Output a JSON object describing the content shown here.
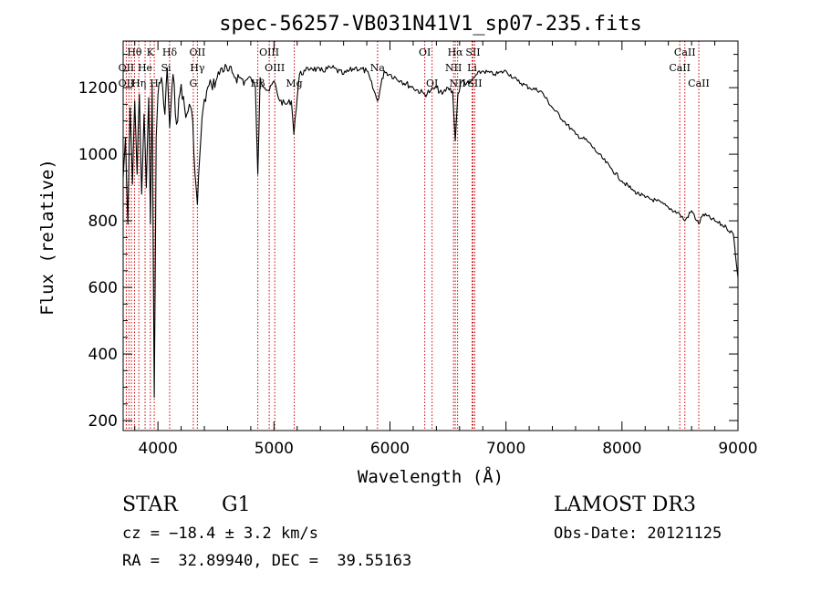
{
  "chart_data": {
    "type": "line",
    "title": "spec-56257-VB031N41V1_sp07-235.fits",
    "xlabel": "Wavelength (Å)",
    "ylabel": "Flux (relative)",
    "xlim": [
      3700,
      9000
    ],
    "ylim": [
      170,
      1340
    ],
    "x_ticks": [
      4000,
      5000,
      6000,
      7000,
      8000,
      9000
    ],
    "x_tick_labels": [
      "4000",
      "5000",
      "6000",
      "7000",
      "8000",
      "9000"
    ],
    "y_ticks": [
      200,
      400,
      600,
      800,
      1000,
      1200
    ],
    "y_tick_labels": [
      "200",
      "400",
      "600",
      "800",
      "1000",
      "1200"
    ],
    "grid": false,
    "series": [
      {
        "name": "flux",
        "color": "#000000",
        "x": [
          3700,
          3720,
          3740,
          3760,
          3780,
          3800,
          3820,
          3840,
          3860,
          3880,
          3900,
          3920,
          3935,
          3950,
          3968,
          3985,
          4000,
          4030,
          4060,
          4080,
          4101,
          4130,
          4160,
          4200,
          4240,
          4270,
          4300,
          4320,
          4340,
          4361,
          4380,
          4420,
          4460,
          4500,
          4550,
          4600,
          4650,
          4700,
          4750,
          4800,
          4840,
          4861,
          4880,
          4920,
          4960,
          5000,
          5050,
          5100,
          5150,
          5172,
          5183,
          5220,
          5270,
          5320,
          5400,
          5500,
          5600,
          5700,
          5800,
          5893,
          5950,
          6000,
          6100,
          6200,
          6300,
          6350,
          6400,
          6450,
          6500,
          6540,
          6563,
          6585,
          6620,
          6680,
          6750,
          6800,
          6900,
          7000,
          7100,
          7200,
          7300,
          7400,
          7500,
          7600,
          7700,
          7800,
          7900,
          8000,
          8100,
          8200,
          8300,
          8400,
          8498,
          8542,
          8600,
          8662,
          8700,
          8800,
          8900,
          8960,
          9000
        ],
        "y": [
          930,
          1050,
          790,
          1140,
          910,
          1160,
          940,
          1180,
          880,
          1120,
          900,
          1170,
          790,
          1210,
          270,
          1050,
          1180,
          1230,
          1120,
          1260,
          1080,
          1240,
          1090,
          1210,
          1110,
          1150,
          1100,
          940,
          850,
          1000,
          1110,
          1190,
          1210,
          1220,
          1260,
          1250,
          1240,
          1230,
          1220,
          1230,
          1200,
          940,
          1230,
          1200,
          1190,
          1220,
          1160,
          1150,
          1160,
          1060,
          1110,
          1240,
          1250,
          1260,
          1250,
          1260,
          1240,
          1260,
          1250,
          1160,
          1250,
          1240,
          1220,
          1200,
          1180,
          1190,
          1200,
          1180,
          1200,
          1190,
          1040,
          1180,
          1220,
          1210,
          1240,
          1250,
          1240,
          1250,
          1220,
          1200,
          1190,
          1140,
          1100,
          1060,
          1040,
          1000,
          960,
          920,
          890,
          870,
          860,
          840,
          820,
          800,
          830,
          790,
          820,
          800,
          780,
          760,
          630
        ]
      }
    ],
    "line_markers": [
      {
        "label": "Hθ",
        "x": 3798,
        "row": 0
      },
      {
        "label": "K",
        "x": 3934,
        "row": 0
      },
      {
        "label": "Hδ",
        "x": 4101,
        "row": 0
      },
      {
        "label": "OII",
        "x": 4340,
        "row": 0
      },
      {
        "label": "OIII",
        "x": 4959,
        "row": 0
      },
      {
        "label": "OI",
        "x": 6300,
        "row": 0
      },
      {
        "label": "Hα",
        "x": 6563,
        "row": 0
      },
      {
        "label": "SII",
        "x": 6716,
        "row": 0
      },
      {
        "label": "CaII",
        "x": 8542,
        "row": 0
      },
      {
        "label": "OII",
        "x": 3727,
        "row": 1
      },
      {
        "label": "He",
        "x": 3889,
        "row": 1
      },
      {
        "label": "Si",
        "x": 4070,
        "row": 1
      },
      {
        "label": "Hγ",
        "x": 4340,
        "row": 1
      },
      {
        "label": "OIII",
        "x": 5007,
        "row": 1
      },
      {
        "label": "Na",
        "x": 5893,
        "row": 1
      },
      {
        "label": "NII",
        "x": 6548,
        "row": 1
      },
      {
        "label": "Li",
        "x": 6708,
        "row": 1
      },
      {
        "label": "CaII",
        "x": 8498,
        "row": 1
      },
      {
        "label": "OII",
        "x": 3727,
        "row": 2
      },
      {
        "label": "Hη",
        "x": 3835,
        "row": 2
      },
      {
        "label": "H",
        "x": 3968,
        "row": 2
      },
      {
        "label": "G",
        "x": 4305,
        "row": 2
      },
      {
        "label": "Hβ",
        "x": 4861,
        "row": 2
      },
      {
        "label": "Mg",
        "x": 5175,
        "row": 2
      },
      {
        "label": "OI",
        "x": 6363,
        "row": 2
      },
      {
        "label": "NII",
        "x": 6583,
        "row": 2
      },
      {
        "label": "SII",
        "x": 6731,
        "row": 2
      },
      {
        "label": "CaII",
        "x": 8662,
        "row": 2
      }
    ],
    "marker_lines_x": [
      3727,
      3750,
      3771,
      3798,
      3835,
      3889,
      3934,
      3968,
      4101,
      4305,
      4340,
      4861,
      4959,
      5007,
      5175,
      5893,
      6300,
      6363,
      6548,
      6563,
      6583,
      6708,
      6716,
      6731,
      8498,
      8542,
      8662
    ],
    "marker_color": "#cc0000"
  },
  "info": {
    "object_class": "STAR",
    "subclass": "G1",
    "survey": "LAMOST DR3",
    "cz": "cz = −18.4 ± 3.2 km/s",
    "obs_date": "Obs-Date: 20121125",
    "coords": "RA =  32.89940, DEC =  39.55163"
  }
}
